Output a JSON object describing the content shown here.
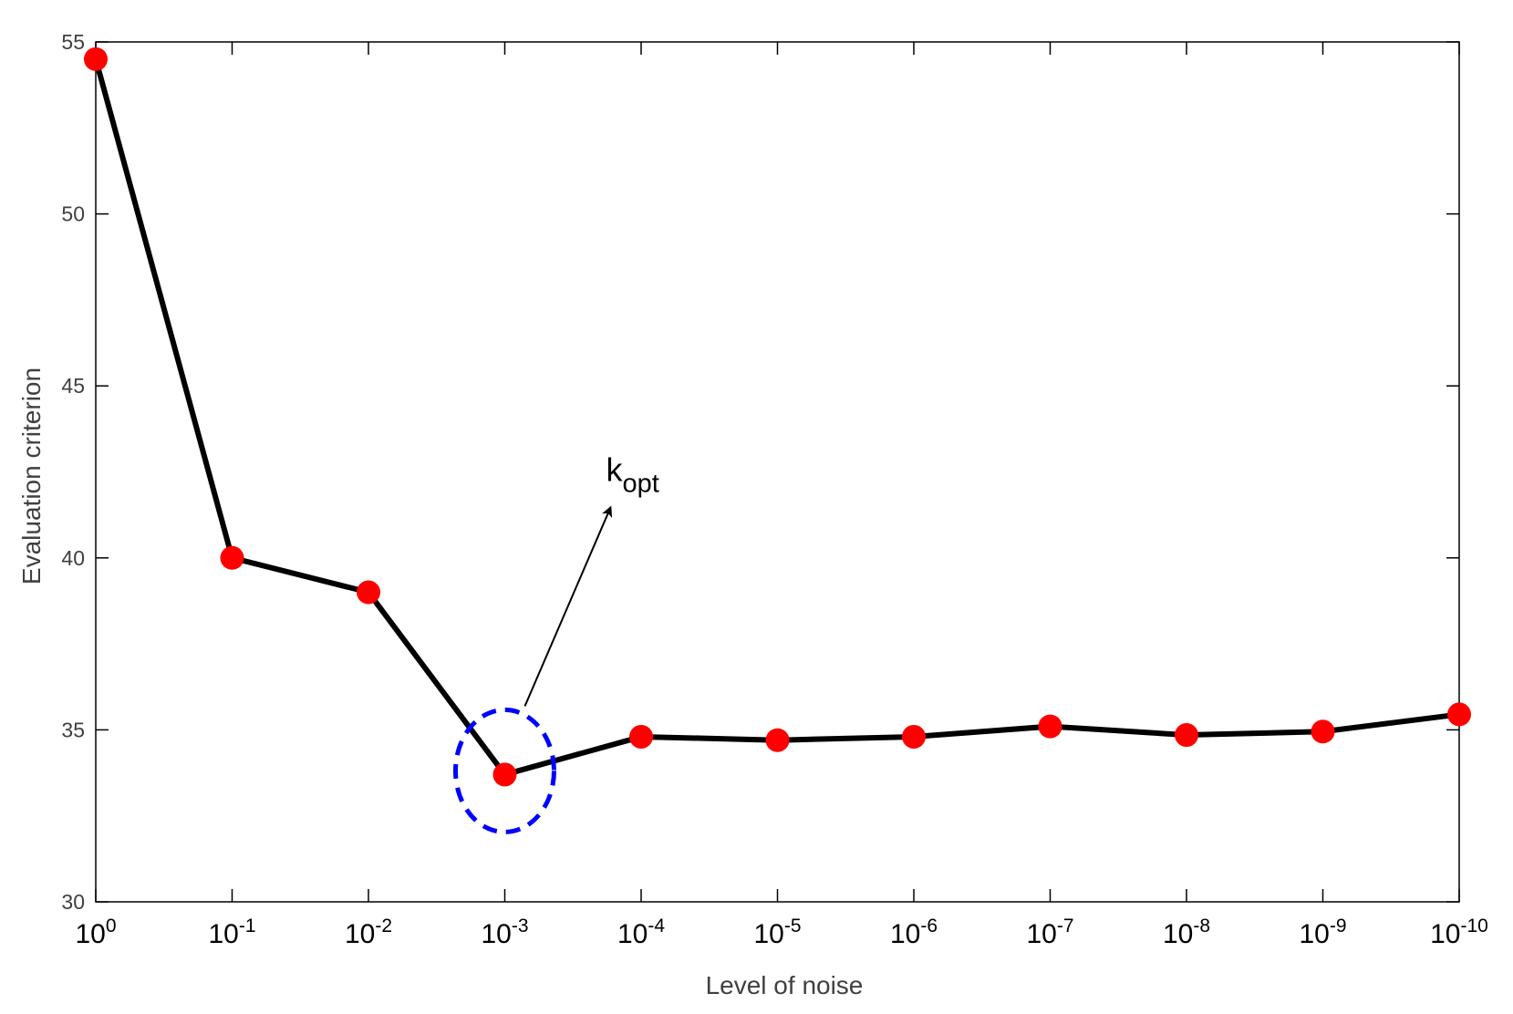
{
  "chart_data": {
    "type": "line",
    "xlabel": "Level of noise",
    "ylabel": "Evaluation criterion",
    "x_tick_base": "10",
    "x_tick_exponents": [
      "0",
      "-1",
      "-2",
      "-3",
      "-4",
      "-5",
      "-6",
      "-7",
      "-8",
      "-9",
      "-10"
    ],
    "ylim": [
      30,
      55
    ],
    "y_ticks": [
      30,
      35,
      40,
      45,
      50,
      55
    ],
    "grid": false,
    "series": [
      {
        "values": [
          54.5,
          40.0,
          39.0,
          33.7,
          34.8,
          34.7,
          34.8,
          35.1,
          34.85,
          34.95,
          35.45
        ],
        "line_color": "#000000",
        "marker_color": "#ff0000"
      }
    ],
    "annotation": {
      "text_main": "k",
      "text_sub": "opt",
      "target_index": 3,
      "highlight_color": "#0000ff",
      "arrow_color": "#000000"
    }
  }
}
